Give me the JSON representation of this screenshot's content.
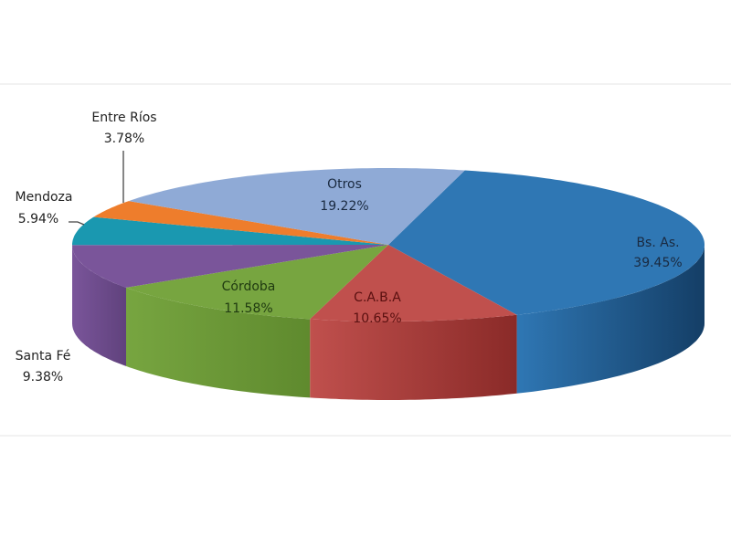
{
  "chart_data": {
    "type": "pie",
    "style": "3d",
    "title": "",
    "unit": "%",
    "slices": [
      {
        "label": "Bs. As.",
        "value": 39.45,
        "display": "39.45%",
        "color": "#2f77b4",
        "side": "#143e66",
        "text": "#1a2a40"
      },
      {
        "label": "C.A.B.A",
        "value": 10.65,
        "display": "10.65%",
        "color": "#c0504d",
        "side": "#8a2a28",
        "text": "#5a1010"
      },
      {
        "label": "Córdoba",
        "value": 11.58,
        "display": "11.58%",
        "color": "#77a540",
        "side": "#5f8a2e",
        "text": "#1f3a10"
      },
      {
        "label": "Santa Fé",
        "value": 9.38,
        "display": "9.38%",
        "color": "#7a559a",
        "side": "#60427d",
        "text": "#222"
      },
      {
        "label": "Mendoza",
        "value": 5.94,
        "display": "5.94%",
        "color": "#1a98b0",
        "side": "#137a8e",
        "text": "#222"
      },
      {
        "label": "Entre Ríos",
        "value": 3.78,
        "display": "3.78%",
        "color": "#ee7d2c",
        "side": "#c06020",
        "text": "#222"
      },
      {
        "label": "Otros",
        "value": 19.22,
        "display": "19.22%",
        "color": "#8faad6",
        "side": "#6f8ab6",
        "text": "#1a2a40"
      }
    ]
  }
}
